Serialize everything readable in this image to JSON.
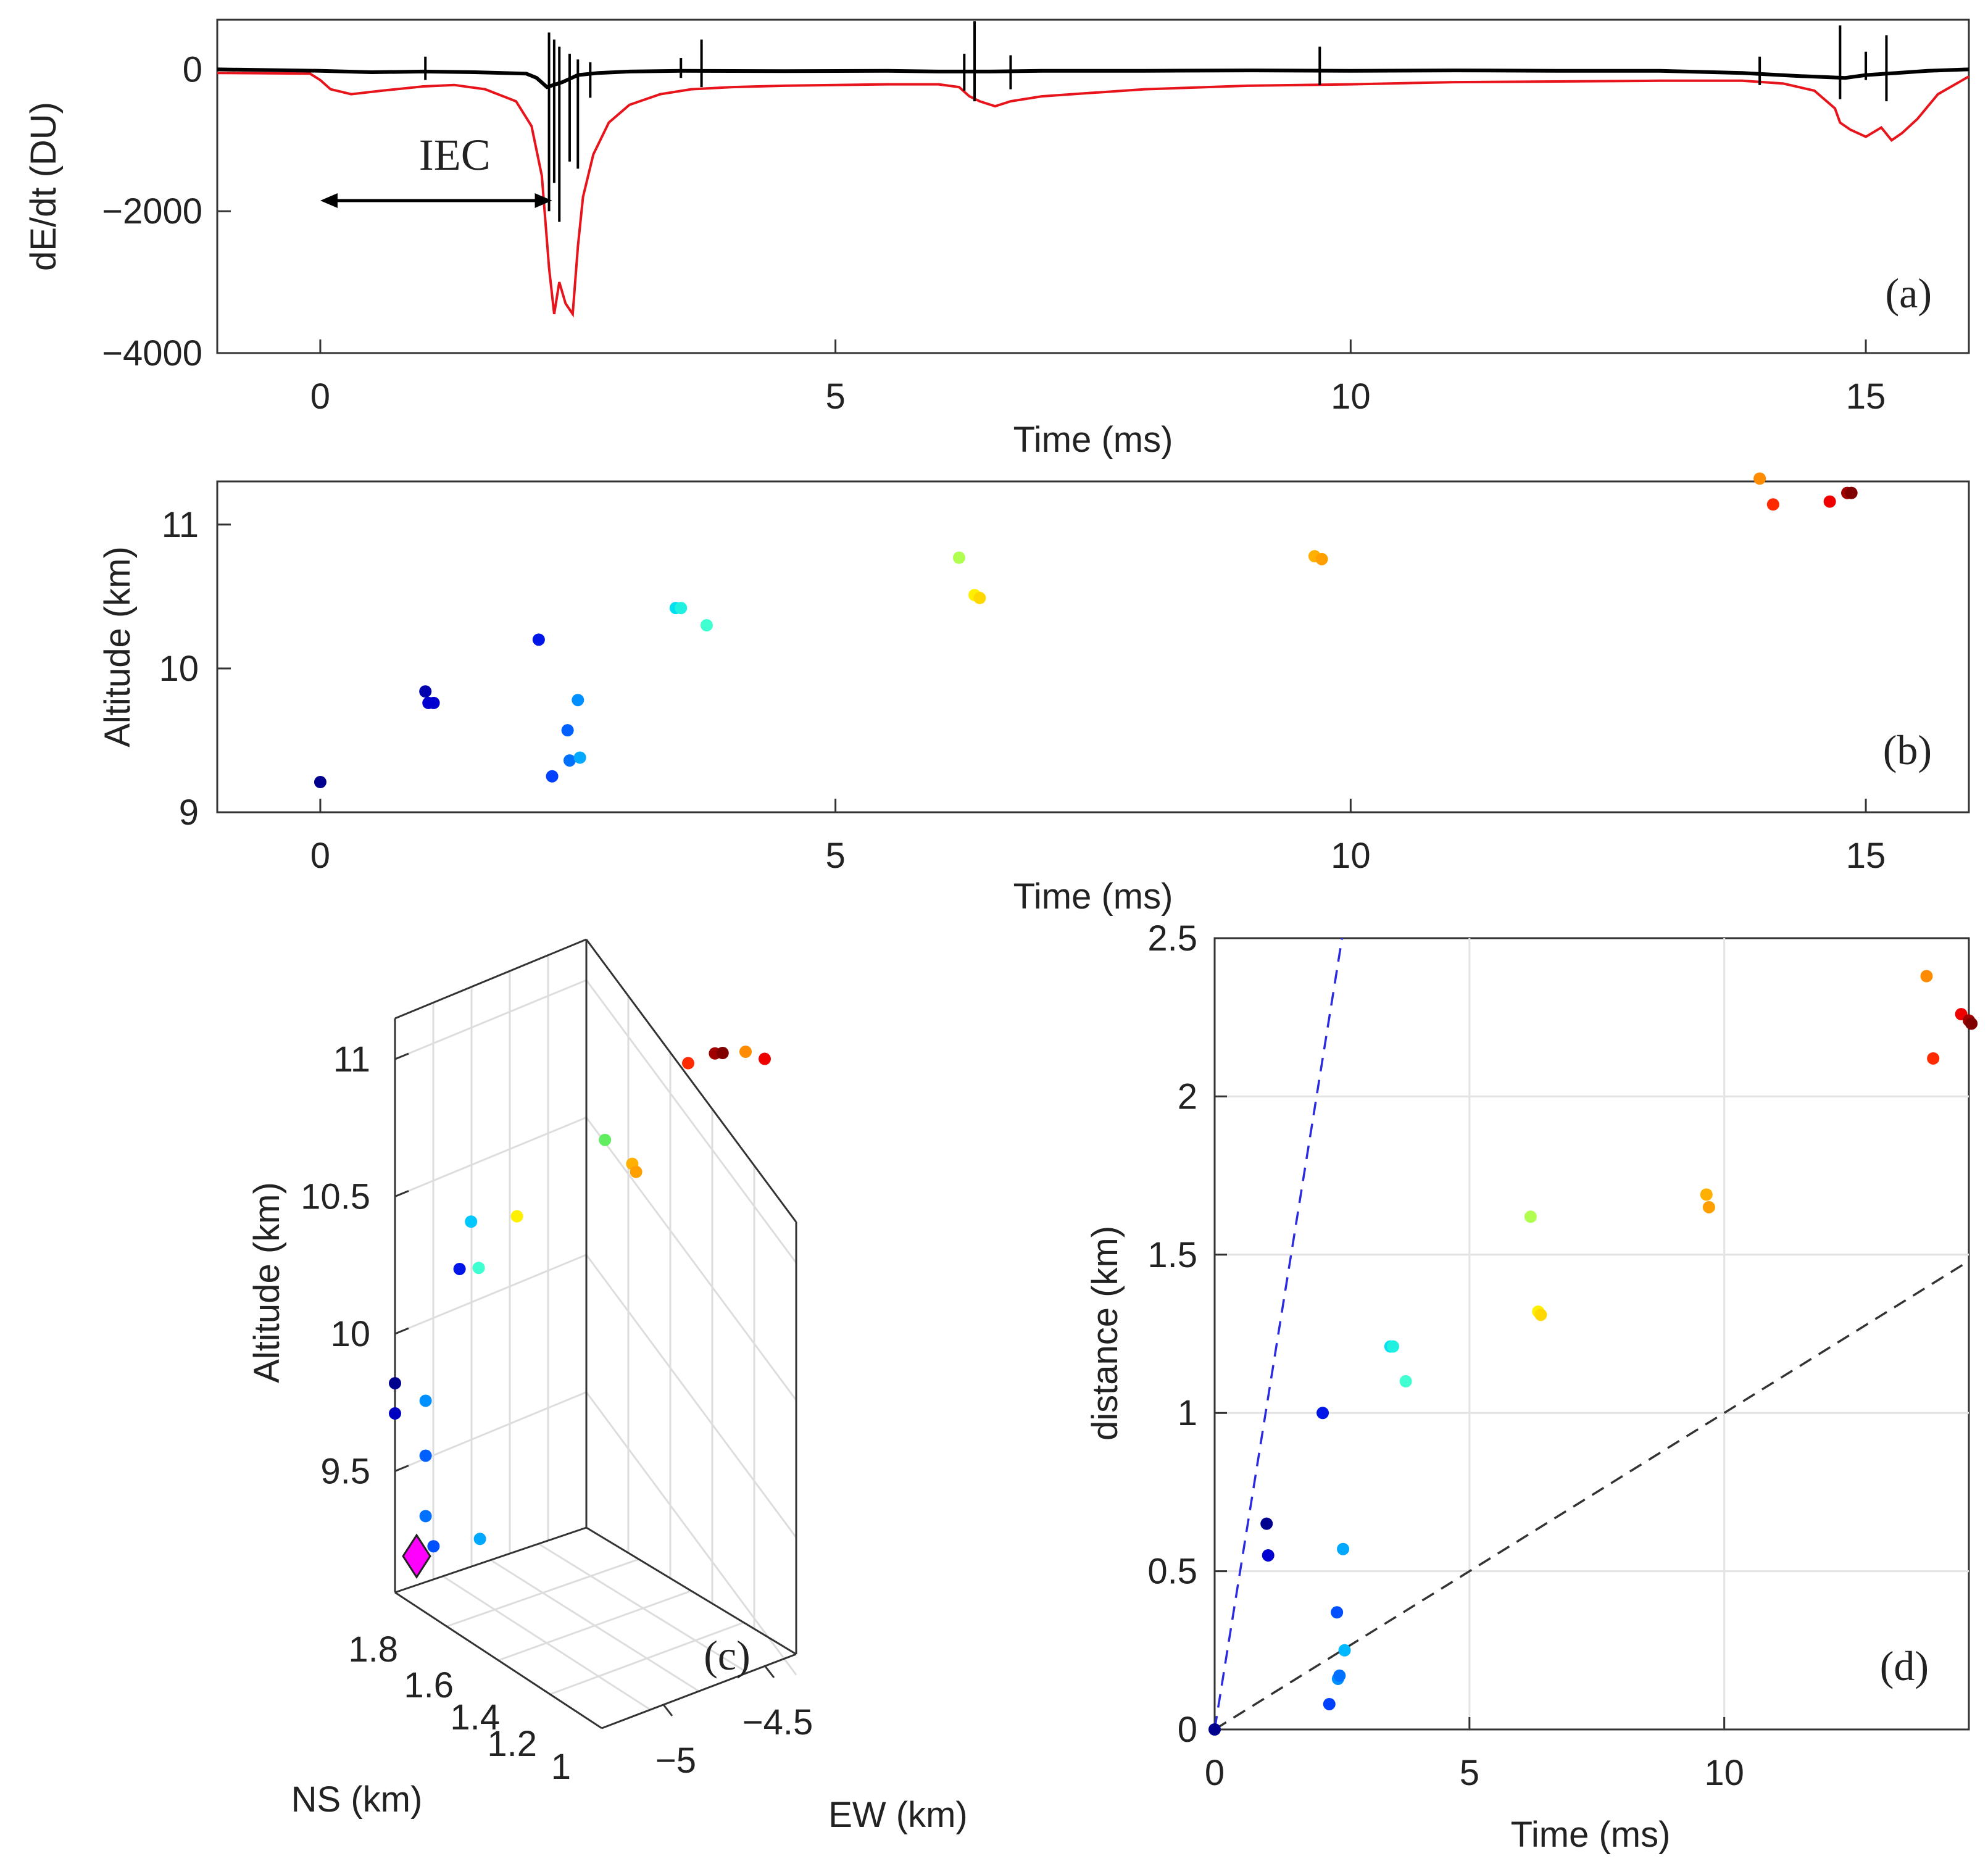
{
  "chart_data": [
    {
      "panel": "a",
      "type": "line",
      "panel_label": "(a)",
      "xlabel": "Time (ms)",
      "ylabel": "dE/dt (DU)",
      "xlim": [
        -1,
        16
      ],
      "ylim": [
        -4000,
        700
      ],
      "xticks": [
        0,
        5,
        10,
        15
      ],
      "yticks": [
        0,
        -2000,
        -4000
      ],
      "xtick_labels": [
        "0",
        "5",
        "10",
        "15"
      ],
      "ytick_labels": [
        "0",
        "−2000",
        "−4000"
      ],
      "annotation": {
        "text": "IEC",
        "x_from": 0,
        "x_to": 2.25,
        "y": -1850
      },
      "series": [
        {
          "name": "black trace",
          "color": "#000000",
          "x": [
            -1,
            0,
            0.5,
            1.0,
            1.5,
            2.0,
            2.1,
            2.2,
            2.35,
            2.5,
            2.7,
            3.0,
            3.5,
            4.5,
            5.5,
            6.0,
            6.5,
            7.0,
            8.0,
            9.0,
            10.0,
            11.0,
            12.0,
            13.0,
            13.8,
            14.3,
            14.8,
            15.0,
            15.3,
            15.6,
            16
          ],
          "y": [
            0,
            -20,
            -40,
            -30,
            -40,
            -60,
            -120,
            -250,
            -180,
            -80,
            -50,
            -30,
            -20,
            -25,
            -20,
            -30,
            -30,
            -20,
            -20,
            -15,
            -20,
            -15,
            -20,
            -20,
            -50,
            -90,
            -120,
            -80,
            -50,
            -20,
            0
          ],
          "spikes": [
            {
              "x": 1.02,
              "top": 180,
              "bottom": -150
            },
            {
              "x": 2.22,
              "top": 520,
              "bottom": -2000
            },
            {
              "x": 2.27,
              "top": 420,
              "bottom": -1600
            },
            {
              "x": 2.32,
              "top": 320,
              "bottom": -2150
            },
            {
              "x": 2.42,
              "top": 220,
              "bottom": -1300
            },
            {
              "x": 2.5,
              "top": 140,
              "bottom": -1400
            },
            {
              "x": 2.62,
              "top": 100,
              "bottom": -400
            },
            {
              "x": 3.5,
              "top": 160,
              "bottom": -120
            },
            {
              "x": 3.7,
              "top": 420,
              "bottom": -250
            },
            {
              "x": 6.25,
              "top": 220,
              "bottom": -300
            },
            {
              "x": 6.35,
              "top": 680,
              "bottom": -450
            },
            {
              "x": 6.7,
              "top": 200,
              "bottom": -280
            },
            {
              "x": 9.7,
              "top": 320,
              "bottom": -220
            },
            {
              "x": 13.97,
              "top": 180,
              "bottom": -220
            },
            {
              "x": 14.75,
              "top": 620,
              "bottom": -420
            },
            {
              "x": 15.0,
              "top": 250,
              "bottom": -150
            },
            {
              "x": 15.2,
              "top": 480,
              "bottom": -450
            }
          ]
        },
        {
          "name": "red trace",
          "color": "#e8141b",
          "x": [
            -1,
            -0.1,
            0,
            0.1,
            0.3,
            0.6,
            1.0,
            1.3,
            1.6,
            1.9,
            2.05,
            2.15,
            2.22,
            2.27,
            2.32,
            2.38,
            2.45,
            2.5,
            2.55,
            2.65,
            2.8,
            3.0,
            3.3,
            3.6,
            4.0,
            4.5,
            5.0,
            5.5,
            6.0,
            6.2,
            6.3,
            6.4,
            6.55,
            6.7,
            7.0,
            7.5,
            8.0,
            9.0,
            10.0,
            11.0,
            12.0,
            13.0,
            13.8,
            14.2,
            14.5,
            14.7,
            14.75,
            14.85,
            15.0,
            15.15,
            15.25,
            15.35,
            15.5,
            15.7,
            16
          ],
          "y": [
            -50,
            -60,
            -150,
            -280,
            -350,
            -300,
            -240,
            -220,
            -280,
            -450,
            -800,
            -1500,
            -2800,
            -3450,
            -3000,
            -3300,
            -3450,
            -2500,
            -1800,
            -1200,
            -750,
            -500,
            -350,
            -280,
            -250,
            -230,
            -220,
            -210,
            -210,
            -250,
            -380,
            -450,
            -520,
            -450,
            -380,
            -330,
            -280,
            -230,
            -210,
            -180,
            -170,
            -160,
            -160,
            -200,
            -300,
            -550,
            -750,
            -850,
            -950,
            -820,
            -1000,
            -900,
            -700,
            -350,
            -100
          ]
        }
      ]
    },
    {
      "panel": "b",
      "type": "scatter",
      "panel_label": "(b)",
      "xlabel": "Time (ms)",
      "ylabel": "Altitude (km)",
      "xlim": [
        -1,
        16
      ],
      "ylim": [
        9,
        11.3
      ],
      "xticks": [
        0,
        5,
        10,
        15
      ],
      "yticks": [
        9,
        10,
        11
      ],
      "xtick_labels": [
        "0",
        "5",
        "10",
        "15"
      ],
      "ytick_labels": [
        "9",
        "10",
        "11"
      ],
      "points": [
        {
          "x": 0.0,
          "y": 9.21,
          "color": "#00008f"
        },
        {
          "x": 1.02,
          "y": 9.84,
          "color": "#0000af"
        },
        {
          "x": 1.05,
          "y": 9.76,
          "color": "#0000d0"
        },
        {
          "x": 1.1,
          "y": 9.76,
          "color": "#0000d0"
        },
        {
          "x": 2.12,
          "y": 10.2,
          "color": "#0016e8"
        },
        {
          "x": 2.25,
          "y": 9.25,
          "color": "#0040ff"
        },
        {
          "x": 2.4,
          "y": 9.57,
          "color": "#0060ff"
        },
        {
          "x": 2.42,
          "y": 9.36,
          "color": "#0070ff"
        },
        {
          "x": 2.5,
          "y": 9.78,
          "color": "#0090ff"
        },
        {
          "x": 2.52,
          "y": 9.38,
          "color": "#00a8ff"
        },
        {
          "x": 3.45,
          "y": 10.42,
          "color": "#00e0f0"
        },
        {
          "x": 3.5,
          "y": 10.42,
          "color": "#20f0e0"
        },
        {
          "x": 3.75,
          "y": 10.3,
          "color": "#40ffd0"
        },
        {
          "x": 6.2,
          "y": 10.77,
          "color": "#b0ff50"
        },
        {
          "x": 6.35,
          "y": 10.51,
          "color": "#fff000"
        },
        {
          "x": 6.4,
          "y": 10.49,
          "color": "#ffd800"
        },
        {
          "x": 9.65,
          "y": 10.78,
          "color": "#ffb000"
        },
        {
          "x": 9.72,
          "y": 10.76,
          "color": "#ffa000"
        },
        {
          "x": 13.97,
          "y": 11.32,
          "color": "#ff8c00"
        },
        {
          "x": 14.1,
          "y": 11.14,
          "color": "#ff2a00"
        },
        {
          "x": 14.65,
          "y": 11.16,
          "color": "#ee0000"
        },
        {
          "x": 14.82,
          "y": 11.22,
          "color": "#a00000"
        },
        {
          "x": 14.86,
          "y": 11.22,
          "color": "#800000"
        }
      ]
    },
    {
      "panel": "c",
      "type": "scatter",
      "panel_label": "(c)",
      "xlabel": "EW (km)",
      "ylabel": "Altitude (km)",
      "zlabel": "NS (km)",
      "ew_ticks": [
        -5,
        -4.5
      ],
      "ew_tick_labels": [
        "−5",
        "−4.5"
      ],
      "ns_ticks": [
        1.8,
        1.6,
        1.4,
        1.2,
        1
      ],
      "ns_tick_labels": [
        "1.8",
        "1.6",
        "1.4",
        "1.2",
        "1"
      ],
      "alt_ticks": [
        9.5,
        10,
        10.5,
        11
      ],
      "alt_tick_labels": [
        "9.5",
        "10",
        "10.5",
        "11"
      ],
      "points": [
        {
          "ew": -5.25,
          "ns": 1.75,
          "alt": 9.2,
          "color": "#ff00ff",
          "marker": "diamond"
        },
        {
          "ew": -5.3,
          "ns": 1.85,
          "alt": 9.82,
          "color": "#00008f"
        },
        {
          "ew": -5.3,
          "ns": 1.85,
          "alt": 9.71,
          "color": "#0000c0"
        },
        {
          "ew": -5.22,
          "ns": 1.85,
          "alt": 9.75,
          "color": "#0090ff"
        },
        {
          "ew": -5.22,
          "ns": 1.85,
          "alt": 9.55,
          "color": "#0060ff"
        },
        {
          "ew": -5.22,
          "ns": 1.85,
          "alt": 9.33,
          "color": "#0070ff"
        },
        {
          "ew": -5.2,
          "ns": 1.84,
          "alt": 9.22,
          "color": "#0050ff"
        },
        {
          "ew": -5.08,
          "ns": 1.82,
          "alt": 9.24,
          "color": "#00a8ff"
        },
        {
          "ew": -5.13,
          "ns": 1.87,
          "alt": 10.22,
          "color": "#0016e8"
        },
        {
          "ew": -5.1,
          "ns": 1.87,
          "alt": 10.39,
          "color": "#00c8ff"
        },
        {
          "ew": -5.08,
          "ns": 1.87,
          "alt": 10.22,
          "color": "#40ffd0"
        },
        {
          "ew": -4.98,
          "ns": 1.87,
          "alt": 10.4,
          "color": "#fff000"
        },
        {
          "ew": -4.75,
          "ns": 1.87,
          "alt": 10.66,
          "color": "#60ee60"
        },
        {
          "ew": -4.68,
          "ns": 1.85,
          "alt": 10.57,
          "color": "#ffb000"
        },
        {
          "ew": -4.67,
          "ns": 1.85,
          "alt": 10.54,
          "color": "#ffa000"
        },
        {
          "ew": -4.55,
          "ns": 1.6,
          "alt": 10.96,
          "color": "#ff2a00"
        },
        {
          "ew": -4.48,
          "ns": 1.6,
          "alt": 10.99,
          "color": "#a00000"
        },
        {
          "ew": -4.46,
          "ns": 1.6,
          "alt": 10.99,
          "color": "#800000"
        },
        {
          "ew": -4.4,
          "ns": 1.6,
          "alt": 10.99,
          "color": "#ff8c00"
        },
        {
          "ew": -4.35,
          "ns": 1.6,
          "alt": 10.96,
          "color": "#ee0000"
        }
      ]
    },
    {
      "panel": "d",
      "type": "scatter",
      "panel_label": "(d)",
      "xlabel": "Time (ms)",
      "ylabel": "distance (km)",
      "xlim": [
        0,
        14.8
      ],
      "ylim": [
        0,
        2.5
      ],
      "xticks": [
        0,
        5,
        10
      ],
      "yticks": [
        0,
        0.5,
        1,
        1.5,
        2,
        2.5
      ],
      "xtick_labels": [
        "0",
        "5",
        "10"
      ],
      "ytick_labels": [
        "0",
        "0.5",
        "1",
        "1.5",
        "2",
        "2.5"
      ],
      "grid": true,
      "lines": [
        {
          "name": "blue dashed",
          "color": "#2a2ae0",
          "x": [
            0,
            2.5
          ],
          "y": [
            0,
            2.5
          ]
        },
        {
          "name": "black dashed",
          "color": "#333333",
          "x": [
            0,
            14.8
          ],
          "y": [
            0,
            1.48
          ]
        }
      ],
      "points": [
        {
          "x": 0.0,
          "y": 0.0,
          "color": "#00008f"
        },
        {
          "x": 1.02,
          "y": 0.65,
          "color": "#00008f"
        },
        {
          "x": 1.05,
          "y": 0.55,
          "color": "#0000d0"
        },
        {
          "x": 2.12,
          "y": 1.0,
          "color": "#0016e8"
        },
        {
          "x": 2.25,
          "y": 0.08,
          "color": "#0040ff"
        },
        {
          "x": 2.4,
          "y": 0.37,
          "color": "#0050ff"
        },
        {
          "x": 2.42,
          "y": 0.16,
          "color": "#0090ff"
        },
        {
          "x": 2.45,
          "y": 0.17,
          "color": "#0070ff"
        },
        {
          "x": 2.52,
          "y": 0.57,
          "color": "#00a8ff"
        },
        {
          "x": 2.55,
          "y": 0.25,
          "color": "#00b8ff"
        },
        {
          "x": 3.45,
          "y": 1.21,
          "color": "#00e0f0"
        },
        {
          "x": 3.5,
          "y": 1.21,
          "color": "#20f0e0"
        },
        {
          "x": 3.75,
          "y": 1.1,
          "color": "#40ffd0"
        },
        {
          "x": 6.2,
          "y": 1.62,
          "color": "#b0ff50"
        },
        {
          "x": 6.35,
          "y": 1.32,
          "color": "#fff000"
        },
        {
          "x": 6.4,
          "y": 1.31,
          "color": "#ffd800"
        },
        {
          "x": 9.65,
          "y": 1.69,
          "color": "#ffb000"
        },
        {
          "x": 9.7,
          "y": 1.65,
          "color": "#ffa000"
        },
        {
          "x": 13.97,
          "y": 2.38,
          "color": "#ff8c00"
        },
        {
          "x": 14.1,
          "y": 2.12,
          "color": "#ff2a00"
        },
        {
          "x": 14.65,
          "y": 2.26,
          "color": "#ee0000"
        },
        {
          "x": 14.8,
          "y": 2.24,
          "color": "#a00000"
        },
        {
          "x": 14.85,
          "y": 2.23,
          "color": "#800000"
        }
      ]
    }
  ]
}
